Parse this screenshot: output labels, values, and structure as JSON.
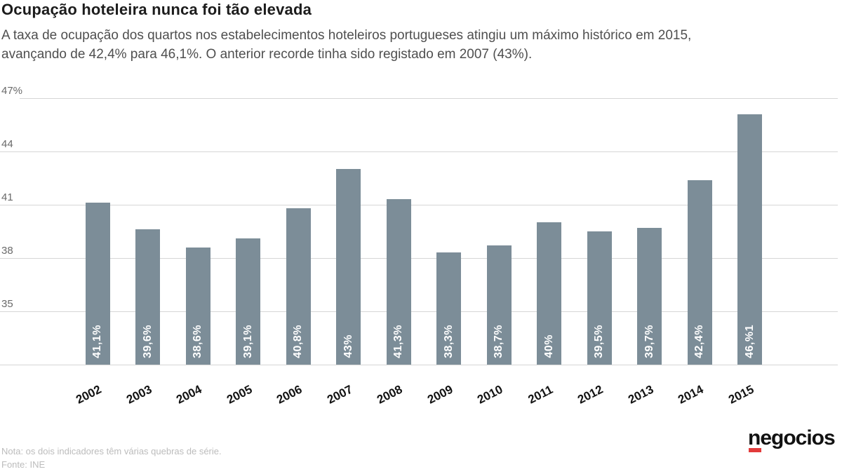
{
  "header": {
    "title": "Ocupação hoteleira nunca foi tão elevada",
    "subtitle_lines": [
      "A taxa de ocupação dos quartos nos estabelecimentos hoteleiros portugueses atingiu um máximo histórico em 2015,",
      "avançando de 42,4% para 46,1%. O anterior recorde tinha sido registado em 2007 (43%)."
    ]
  },
  "chart_data": {
    "type": "bar",
    "categories": [
      "2002",
      "2003",
      "2004",
      "2005",
      "2006",
      "2007",
      "2008",
      "2009",
      "2010",
      "2011",
      "2012",
      "2013",
      "2014",
      "2015"
    ],
    "values": [
      41.1,
      39.6,
      38.6,
      39.1,
      40.8,
      43,
      41.3,
      38.3,
      38.7,
      40,
      39.5,
      39.7,
      42.4,
      46.1
    ],
    "bar_labels": [
      "41,1%",
      "39,6%",
      "38,6%",
      "39,1%",
      "40,8%",
      "43%",
      "41,3%",
      "38,3%",
      "38,7%",
      "40%",
      "39,5%",
      "39,7%",
      "42,4%",
      "46,%1"
    ],
    "title": "Ocupação hoteleira nunca foi tão elevada",
    "xlabel": "",
    "ylabel": "",
    "ylim": [
      32,
      47
    ],
    "yticks": [
      35,
      38,
      41,
      44,
      47
    ],
    "ytick_labels": [
      "35",
      "38",
      "41",
      "44",
      "47%"
    ],
    "grid": true,
    "legend": false,
    "bar_color": "#7c8d98",
    "bar_label_color": "#ffffff"
  },
  "footer": {
    "note": "Nota: os dois indicadores têm várias quebras de série.",
    "source": "Fonte: INE",
    "logo_text": "negocios",
    "logo_accent_color": "#e23b3b"
  }
}
